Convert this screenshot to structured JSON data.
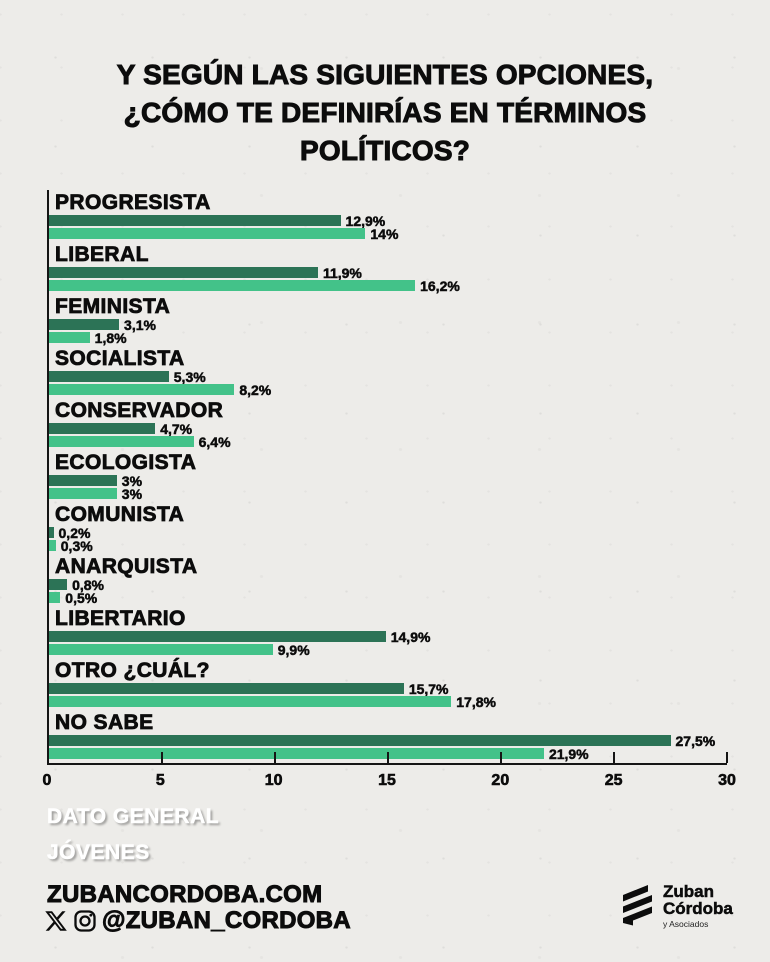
{
  "title": {
    "line1": "Y SEGÚN LAS SIGUIENTES OPCIONES,",
    "line2": "¿CÓMO TE DEFINIRÍAS EN TÉRMINOS",
    "line3": "POLÍTICOS?"
  },
  "chart_data": {
    "type": "bar",
    "orientation": "horizontal",
    "categories": [
      "PROGRESISTA",
      "LIBERAL",
      "FEMINISTA",
      "SOCIALISTA",
      "CONSERVADOR",
      "ECOLOGISTA",
      "COMUNISTA",
      "ANARQUISTA",
      "LIBERTARIO",
      "OTRO ¿CUÁL?",
      "NO SABE"
    ],
    "series": [
      {
        "name": "JÓVENES",
        "color": "#2c7356",
        "values": [
          12.9,
          11.9,
          3.1,
          5.3,
          4.7,
          3,
          0.2,
          0.8,
          14.9,
          15.7,
          27.5
        ],
        "labels": [
          "12,9%",
          "11,9%",
          "3,1%",
          "5,3%",
          "4,7%",
          "3%",
          "0,2%",
          "0,8%",
          "14,9%",
          "15,7%",
          "27,5%"
        ]
      },
      {
        "name": "DATO GENERAL",
        "color": "#43c289",
        "values": [
          14,
          16.2,
          1.8,
          8.2,
          6.4,
          3,
          0.3,
          0.5,
          9.9,
          17.8,
          21.9
        ],
        "labels": [
          "14%",
          "16,2%",
          "1,8%",
          "8,2%",
          "6,4%",
          "3%",
          "0,3%",
          "0,5%",
          "9,9%",
          "17,8%",
          "21,9%"
        ]
      }
    ],
    "xlim": [
      0,
      30
    ],
    "xticks": [
      0,
      5,
      10,
      15,
      20,
      25,
      30
    ],
    "grid": false,
    "legend_position": "bottom",
    "legend": [
      {
        "label": "DATO GENERAL",
        "color": "#46c28d"
      },
      {
        "label": "JÓVENES",
        "color": "#2c7a5b"
      }
    ]
  },
  "footer": {
    "website": "ZUBANCORDOBA.COM",
    "handle": "@ZUBAN_CORDOBA",
    "icons": [
      "x-icon",
      "instagram-icon"
    ],
    "logo": {
      "line1": "Zuban",
      "line2": "Córdoba",
      "line3": "y Asociados"
    }
  },
  "colors": {
    "background": "#edece9",
    "axis": "#151515",
    "series_dark": "#2c7356",
    "series_light": "#43c289"
  }
}
